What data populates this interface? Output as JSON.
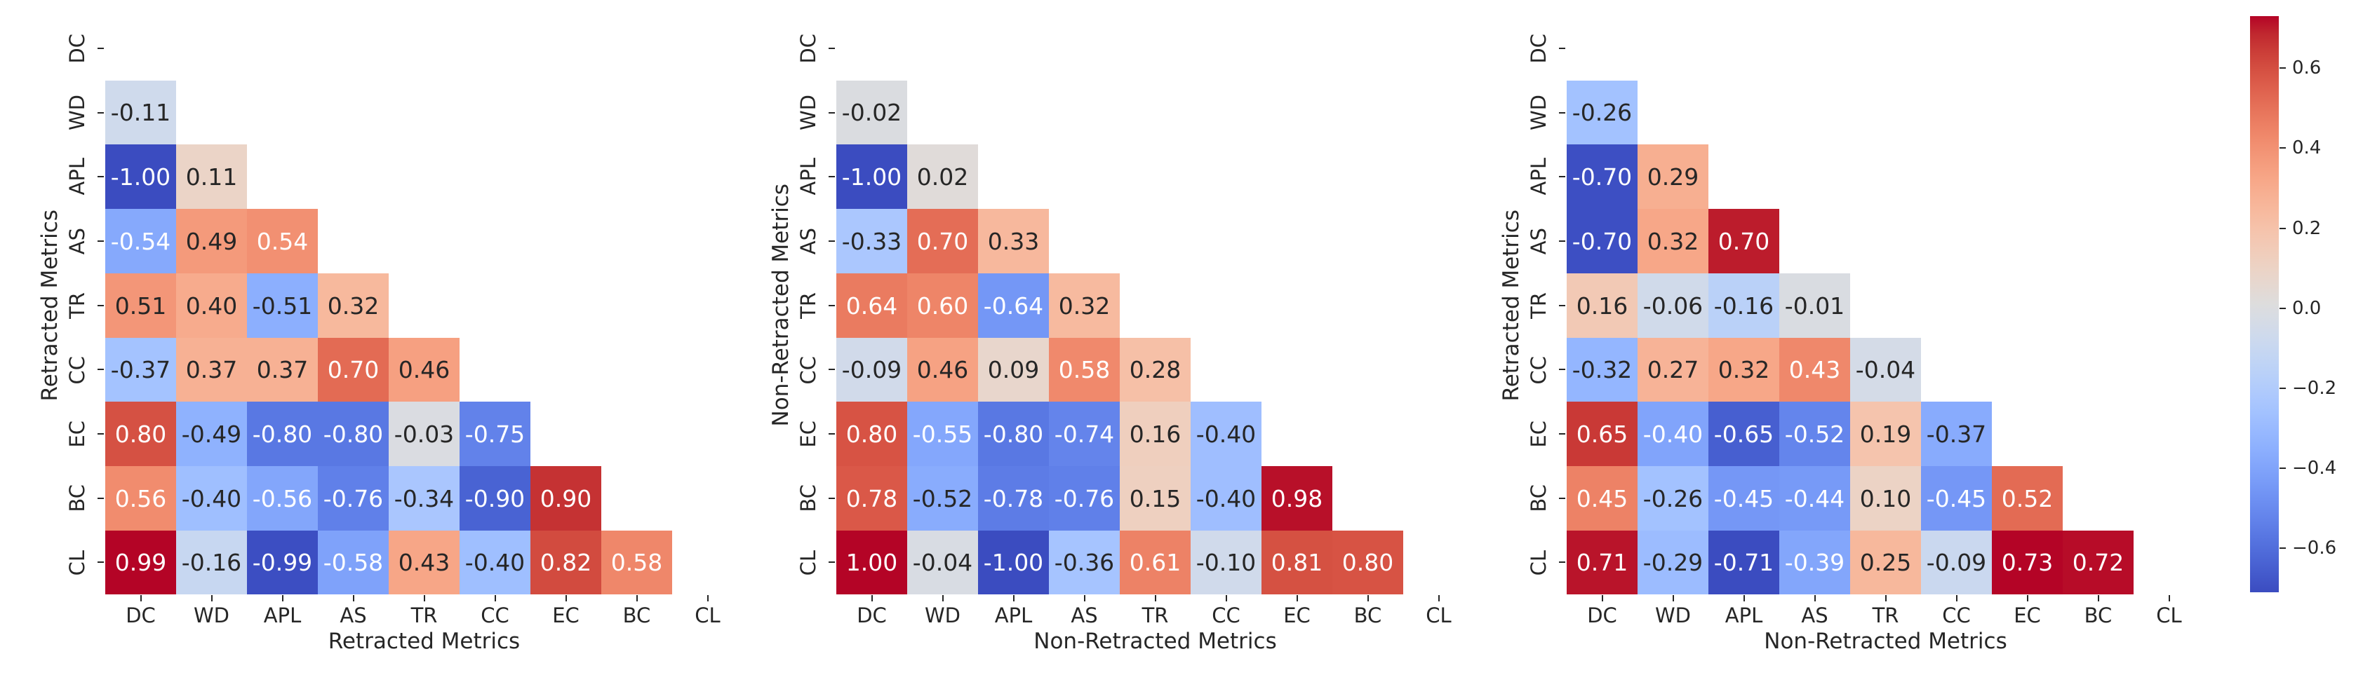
{
  "figure": {
    "background": "#ffffff",
    "text_color": "#262626",
    "annot_dark_text": "#262626",
    "annot_light_text": "#ffffff"
  },
  "chart_data": [
    {
      "type": "heatmap",
      "panel": "retracted-vs-retracted",
      "xlabel": "Retracted Metrics",
      "ylabel": "Retracted Metrics",
      "labels": [
        "DC",
        "WD",
        "APL",
        "AS",
        "TR",
        "CC",
        "EC",
        "BC",
        "CL"
      ],
      "mask": "strict-lower-triangle-shown",
      "colormap": "coolwarm",
      "annot_format": ".2f",
      "values": [
        [
          -0.11
        ],
        [
          -1.0,
          0.11
        ],
        [
          -0.54,
          0.49,
          0.54
        ],
        [
          0.51,
          0.4,
          -0.51,
          0.32
        ],
        [
          -0.37,
          0.37,
          0.37,
          0.7,
          0.46
        ],
        [
          0.8,
          -0.49,
          -0.8,
          -0.8,
          -0.03,
          -0.75
        ],
        [
          0.56,
          -0.4,
          -0.56,
          -0.76,
          -0.34,
          -0.9,
          0.9
        ],
        [
          0.99,
          -0.16,
          -0.99,
          -0.58,
          0.43,
          -0.4,
          0.82,
          0.58
        ]
      ]
    },
    {
      "type": "heatmap",
      "panel": "nonretracted-vs-nonretracted",
      "xlabel": "Non-Retracted Metrics",
      "ylabel": "Non-Retracted Metrics",
      "labels": [
        "DC",
        "WD",
        "APL",
        "AS",
        "TR",
        "CC",
        "EC",
        "BC",
        "CL"
      ],
      "mask": "strict-lower-triangle-shown",
      "colormap": "coolwarm",
      "annot_format": ".2f",
      "values": [
        [
          -0.02
        ],
        [
          -1.0,
          0.02
        ],
        [
          -0.33,
          0.7,
          0.33
        ],
        [
          0.64,
          0.6,
          -0.64,
          0.32
        ],
        [
          -0.09,
          0.46,
          0.09,
          0.58,
          0.28
        ],
        [
          0.8,
          -0.55,
          -0.8,
          -0.74,
          0.16,
          -0.4
        ],
        [
          0.78,
          -0.52,
          -0.78,
          -0.76,
          0.15,
          -0.4,
          0.98
        ],
        [
          1.0,
          -0.04,
          -1.0,
          -0.36,
          0.61,
          -0.1,
          0.81,
          0.8
        ]
      ]
    },
    {
      "type": "heatmap",
      "panel": "retracted-vs-nonretracted",
      "xlabel": "Non-Retracted Metrics",
      "ylabel": "Retracted Metrics",
      "labels": [
        "DC",
        "WD",
        "APL",
        "AS",
        "TR",
        "CC",
        "EC",
        "BC",
        "CL"
      ],
      "mask": "strict-lower-triangle-shown",
      "colormap": "coolwarm",
      "annot_format": ".2f",
      "values": [
        [
          -0.26
        ],
        [
          -0.7,
          0.29
        ],
        [
          -0.7,
          0.32,
          0.7
        ],
        [
          0.16,
          -0.06,
          -0.16,
          -0.01
        ],
        [
          -0.32,
          0.27,
          0.32,
          0.43,
          -0.04
        ],
        [
          0.65,
          -0.4,
          -0.65,
          -0.52,
          0.19,
          -0.37
        ],
        [
          0.45,
          -0.26,
          -0.45,
          -0.44,
          0.1,
          -0.45,
          0.52
        ],
        [
          0.71,
          -0.29,
          -0.71,
          -0.39,
          0.25,
          -0.09,
          0.73,
          0.72
        ]
      ]
    }
  ],
  "colorbar": {
    "orientation": "vertical",
    "colormap": "coolwarm",
    "vmin": -0.71,
    "vmax": 0.73,
    "ticks": [
      {
        "value": 0.6,
        "label": "0.6"
      },
      {
        "value": 0.4,
        "label": "0.4"
      },
      {
        "value": 0.2,
        "label": "0.2"
      },
      {
        "value": 0.0,
        "label": "0.0"
      },
      {
        "value": -0.2,
        "label": "−0.2"
      },
      {
        "value": -0.4,
        "label": "−0.4"
      },
      {
        "value": -0.6,
        "label": "−0.6"
      }
    ]
  }
}
